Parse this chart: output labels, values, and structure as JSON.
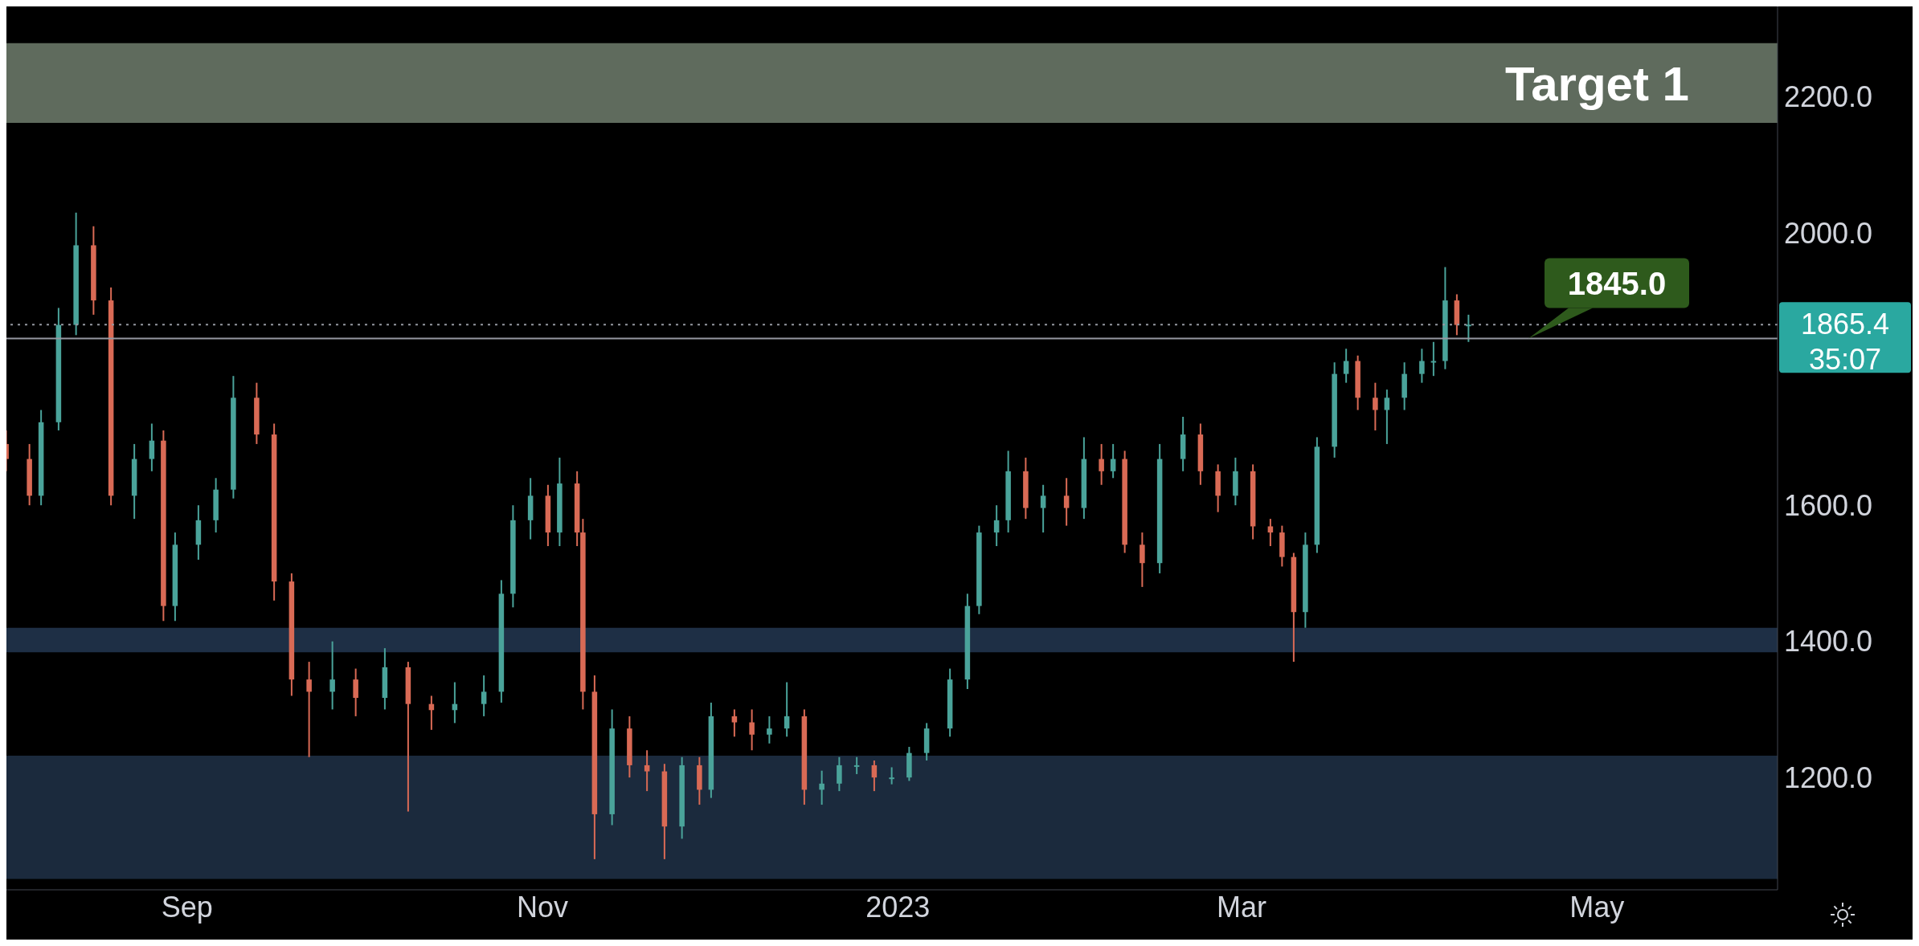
{
  "chart_data": {
    "type": "candlestick",
    "x": [
      "2022-08-01",
      "2022-08-05",
      "2022-08-07",
      "2022-08-10",
      "2022-08-13",
      "2022-08-16",
      "2022-08-19",
      "2022-08-23",
      "2022-08-26",
      "2022-08-28",
      "2022-08-30",
      "2022-09-03",
      "2022-09-06",
      "2022-09-09",
      "2022-09-13",
      "2022-09-16",
      "2022-09-19",
      "2022-09-22",
      "2022-09-26",
      "2022-09-30",
      "2022-10-05",
      "2022-10-09",
      "2022-10-13",
      "2022-10-17",
      "2022-10-22",
      "2022-10-25",
      "2022-10-27",
      "2022-10-30",
      "2022-11-02",
      "2022-11-04",
      "2022-11-07",
      "2022-11-08",
      "2022-11-10",
      "2022-11-13",
      "2022-11-16",
      "2022-11-19",
      "2022-11-22",
      "2022-11-25",
      "2022-11-28",
      "2022-11-30",
      "2022-12-04",
      "2022-12-07",
      "2022-12-10",
      "2022-12-13",
      "2022-12-16",
      "2022-12-19",
      "2022-12-22",
      "2022-12-25",
      "2022-12-28",
      "2022-12-31",
      "2023-01-03",
      "2023-01-06",
      "2023-01-10",
      "2023-01-13",
      "2023-01-15",
      "2023-01-18",
      "2023-01-20",
      "2023-01-23",
      "2023-01-26",
      "2023-01-30",
      "2023-02-02",
      "2023-02-05",
      "2023-02-07",
      "2023-02-09",
      "2023-02-12",
      "2023-02-15",
      "2023-02-19",
      "2023-02-22",
      "2023-02-25",
      "2023-02-28",
      "2023-03-03",
      "2023-03-06",
      "2023-03-08",
      "2023-03-10",
      "2023-03-12",
      "2023-03-14",
      "2023-03-17",
      "2023-03-19",
      "2023-03-21",
      "2023-03-24",
      "2023-03-26",
      "2023-03-29",
      "2023-04-01",
      "2023-04-03",
      "2023-04-05",
      "2023-04-07",
      "2023-04-09"
    ],
    "ohlc": [
      [
        1690,
        1710,
        1650,
        1668
      ],
      [
        1668,
        1690,
        1600,
        1614
      ],
      [
        1614,
        1740,
        1600,
        1722
      ],
      [
        1722,
        1890,
        1710,
        1865
      ],
      [
        1865,
        2030,
        1850,
        1982
      ],
      [
        1982,
        2010,
        1880,
        1901
      ],
      [
        1901,
        1920,
        1600,
        1614
      ],
      [
        1614,
        1690,
        1580,
        1668
      ],
      [
        1668,
        1720,
        1650,
        1695
      ],
      [
        1695,
        1710,
        1430,
        1452
      ],
      [
        1452,
        1560,
        1430,
        1542
      ],
      [
        1542,
        1600,
        1520,
        1578
      ],
      [
        1578,
        1640,
        1560,
        1623
      ],
      [
        1623,
        1790,
        1610,
        1758
      ],
      [
        1758,
        1780,
        1690,
        1704
      ],
      [
        1704,
        1720,
        1460,
        1488
      ],
      [
        1488,
        1500,
        1320,
        1344
      ],
      [
        1344,
        1370,
        1230,
        1326
      ],
      [
        1326,
        1400,
        1300,
        1344
      ],
      [
        1344,
        1360,
        1290,
        1317
      ],
      [
        1317,
        1390,
        1300,
        1362
      ],
      [
        1362,
        1370,
        1150,
        1308
      ],
      [
        1308,
        1320,
        1270,
        1299
      ],
      [
        1299,
        1340,
        1280,
        1308
      ],
      [
        1308,
        1350,
        1290,
        1326
      ],
      [
        1326,
        1490,
        1310,
        1470
      ],
      [
        1470,
        1600,
        1450,
        1578
      ],
      [
        1578,
        1640,
        1550,
        1614
      ],
      [
        1614,
        1630,
        1540,
        1560
      ],
      [
        1560,
        1670,
        1540,
        1632
      ],
      [
        1632,
        1650,
        1540,
        1560
      ],
      [
        1560,
        1580,
        1300,
        1326
      ],
      [
        1326,
        1350,
        1080,
        1146
      ],
      [
        1146,
        1300,
        1130,
        1272
      ],
      [
        1272,
        1290,
        1200,
        1218
      ],
      [
        1218,
        1240,
        1180,
        1209
      ],
      [
        1209,
        1220,
        1080,
        1128
      ],
      [
        1128,
        1230,
        1110,
        1218
      ],
      [
        1218,
        1230,
        1160,
        1182
      ],
      [
        1182,
        1310,
        1170,
        1290
      ],
      [
        1290,
        1300,
        1260,
        1281
      ],
      [
        1281,
        1300,
        1240,
        1263
      ],
      [
        1263,
        1290,
        1250,
        1272
      ],
      [
        1272,
        1340,
        1260,
        1290
      ],
      [
        1290,
        1300,
        1160,
        1182
      ],
      [
        1182,
        1210,
        1160,
        1191
      ],
      [
        1191,
        1230,
        1180,
        1218
      ],
      [
        1218,
        1230,
        1205,
        1218
      ],
      [
        1218,
        1225,
        1180,
        1200
      ],
      [
        1200,
        1215,
        1190,
        1200
      ],
      [
        1200,
        1245,
        1195,
        1236
      ],
      [
        1236,
        1280,
        1225,
        1272
      ],
      [
        1272,
        1360,
        1260,
        1344
      ],
      [
        1344,
        1470,
        1330,
        1452
      ],
      [
        1452,
        1570,
        1440,
        1560
      ],
      [
        1560,
        1600,
        1540,
        1578
      ],
      [
        1578,
        1680,
        1560,
        1650
      ],
      [
        1650,
        1670,
        1580,
        1596
      ],
      [
        1596,
        1630,
        1560,
        1614
      ],
      [
        1614,
        1640,
        1570,
        1596
      ],
      [
        1596,
        1700,
        1580,
        1668
      ],
      [
        1668,
        1690,
        1630,
        1650
      ],
      [
        1650,
        1690,
        1640,
        1668
      ],
      [
        1668,
        1680,
        1530,
        1542
      ],
      [
        1542,
        1560,
        1480,
        1515
      ],
      [
        1515,
        1690,
        1500,
        1668
      ],
      [
        1668,
        1730,
        1650,
        1704
      ],
      [
        1704,
        1720,
        1630,
        1650
      ],
      [
        1650,
        1660,
        1590,
        1614
      ],
      [
        1614,
        1670,
        1600,
        1650
      ],
      [
        1650,
        1660,
        1550,
        1569
      ],
      [
        1569,
        1580,
        1540,
        1560
      ],
      [
        1560,
        1570,
        1510,
        1524
      ],
      [
        1524,
        1530,
        1370,
        1443
      ],
      [
        1443,
        1560,
        1420,
        1542
      ],
      [
        1542,
        1700,
        1530,
        1686
      ],
      [
        1686,
        1810,
        1670,
        1793
      ],
      [
        1793,
        1830,
        1780,
        1812
      ],
      [
        1812,
        1820,
        1740,
        1758
      ],
      [
        1758,
        1780,
        1710,
        1740
      ],
      [
        1740,
        1770,
        1690,
        1758
      ],
      [
        1758,
        1810,
        1740,
        1793
      ],
      [
        1793,
        1830,
        1780,
        1812
      ],
      [
        1812,
        1840,
        1790,
        1812
      ],
      [
        1812,
        1950,
        1800,
        1901
      ],
      [
        1901,
        1910,
        1850,
        1865
      ],
      [
        1865,
        1880,
        1840,
        1865.4
      ]
    ],
    "colors": [
      "#d96a55",
      "#d96a55",
      "#4aa39a",
      "#4aa39a",
      "#4aa39a",
      "#d96a55",
      "#d96a55",
      "#4aa39a",
      "#4aa39a",
      "#d96a55",
      "#4aa39a",
      "#4aa39a",
      "#4aa39a",
      "#4aa39a",
      "#d96a55",
      "#d96a55",
      "#d96a55",
      "#d96a55",
      "#4aa39a",
      "#d96a55",
      "#4aa39a",
      "#d96a55",
      "#d96a55",
      "#4aa39a",
      "#4aa39a",
      "#4aa39a",
      "#4aa39a",
      "#4aa39a",
      "#d96a55",
      "#4aa39a",
      "#d96a55",
      "#d96a55",
      "#d96a55",
      "#4aa39a",
      "#d96a55",
      "#d96a55",
      "#d96a55",
      "#4aa39a",
      "#d96a55",
      "#4aa39a",
      "#d96a55",
      "#d96a55",
      "#4aa39a",
      "#4aa39a",
      "#d96a55",
      "#4aa39a",
      "#4aa39a",
      "#4aa39a",
      "#d96a55",
      "#4aa39a",
      "#4aa39a",
      "#4aa39a",
      "#4aa39a",
      "#4aa39a",
      "#4aa39a",
      "#4aa39a",
      "#4aa39a",
      "#d96a55",
      "#4aa39a",
      "#d96a55",
      "#4aa39a",
      "#d96a55",
      "#4aa39a",
      "#d96a55",
      "#d96a55",
      "#4aa39a",
      "#4aa39a",
      "#d96a55",
      "#d96a55",
      "#4aa39a",
      "#d96a55",
      "#d96a55",
      "#d96a55",
      "#d96a55",
      "#4aa39a",
      "#4aa39a",
      "#4aa39a",
      "#4aa39a",
      "#d96a55",
      "#d96a55",
      "#4aa39a",
      "#4aa39a",
      "#4aa39a",
      "#4aa39a",
      "#4aa39a",
      "#d96a55",
      "#4aa39a"
    ],
    "xlim": [
      "2022-08-01",
      "2023-06-01"
    ],
    "xticks": [
      {
        "value": "2022-09-01",
        "label": "Sep"
      },
      {
        "value": "2022-11-01",
        "label": "Nov"
      },
      {
        "value": "2023-01-01",
        "label": "2023"
      },
      {
        "value": "2023-03-01",
        "label": "Mar"
      },
      {
        "value": "2023-05-01",
        "label": "May"
      }
    ],
    "ylim": [
      1035,
      2333
    ],
    "yticks": [
      {
        "value": 1200,
        "label": "1200.0"
      },
      {
        "value": 1400,
        "label": "1400.0"
      },
      {
        "value": 1600,
        "label": "1600.0"
      },
      {
        "value": 2000,
        "label": "2000.0"
      },
      {
        "value": 2200,
        "label": "2200.0"
      }
    ],
    "bands": [
      {
        "axis": "y",
        "from": 2162,
        "to": 2279,
        "label": "Target 1",
        "color": "#5f6b5d"
      },
      {
        "axis": "y",
        "from": 1384,
        "to": 1420,
        "color": "#1e2f45"
      },
      {
        "axis": "y",
        "from": 1051,
        "to": 1232,
        "color": "#1b2a3d"
      }
    ],
    "ref_lines": [
      {
        "axis": "y",
        "value": 1865.4,
        "label": "1865.4",
        "color": "#9598a1",
        "line_style": "dotted"
      },
      {
        "axis": "y",
        "value": 1845,
        "label": "1845.0",
        "color": "#9598a1",
        "line_style": "solid"
      }
    ],
    "annotations": [
      "35:07"
    ],
    "grid": false
  }
}
